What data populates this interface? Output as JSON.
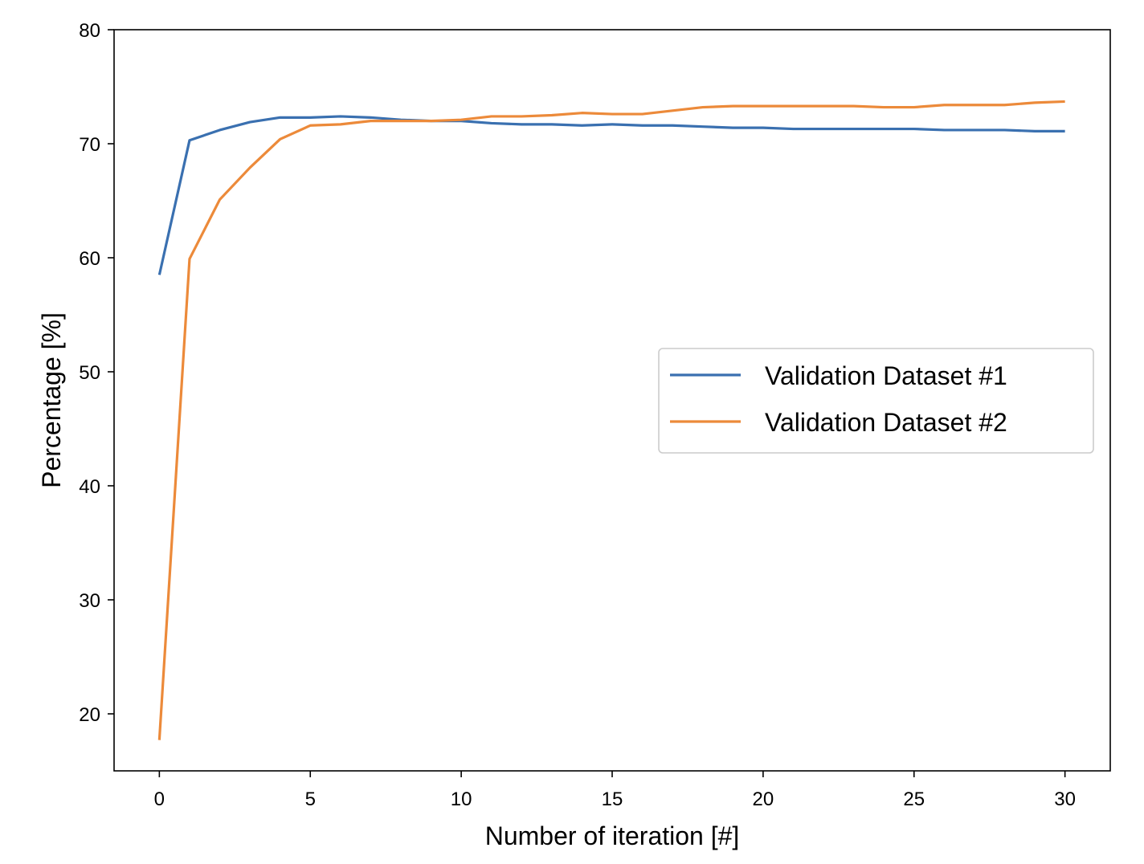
{
  "chart_data": {
    "type": "line",
    "title": "",
    "xlabel": "Number of iteration [#]",
    "ylabel": "Percentage [%]",
    "xlim": [
      -1.5,
      31.5
    ],
    "ylim": [
      15,
      80
    ],
    "xticks": [
      0,
      5,
      10,
      15,
      20,
      25,
      30
    ],
    "yticks": [
      20,
      30,
      40,
      50,
      60,
      70,
      80
    ],
    "x": [
      0,
      1,
      2,
      3,
      4,
      5,
      6,
      7,
      8,
      9,
      10,
      11,
      12,
      13,
      14,
      15,
      16,
      17,
      18,
      19,
      20,
      21,
      22,
      23,
      24,
      25,
      26,
      27,
      28,
      29,
      30
    ],
    "legend_position": "center-right",
    "grid": false,
    "series": [
      {
        "name": "Validation Dataset #1",
        "color": "#3A70B0",
        "values": [
          58.5,
          70.3,
          71.2,
          71.9,
          72.3,
          72.3,
          72.4,
          72.3,
          72.1,
          72.0,
          72.0,
          71.8,
          71.7,
          71.7,
          71.6,
          71.7,
          71.6,
          71.6,
          71.5,
          71.4,
          71.4,
          71.3,
          71.3,
          71.3,
          71.3,
          71.3,
          71.2,
          71.2,
          71.2,
          71.1,
          71.1
        ]
      },
      {
        "name": "Validation Dataset #2",
        "color": "#EC8A3A",
        "values": [
          17.7,
          59.9,
          65.1,
          67.9,
          70.4,
          71.6,
          71.7,
          72.0,
          72.0,
          72.0,
          72.1,
          72.4,
          72.4,
          72.5,
          72.7,
          72.6,
          72.6,
          72.9,
          73.2,
          73.3,
          73.3,
          73.3,
          73.3,
          73.3,
          73.2,
          73.2,
          73.4,
          73.4,
          73.4,
          73.6,
          73.7
        ]
      }
    ]
  }
}
